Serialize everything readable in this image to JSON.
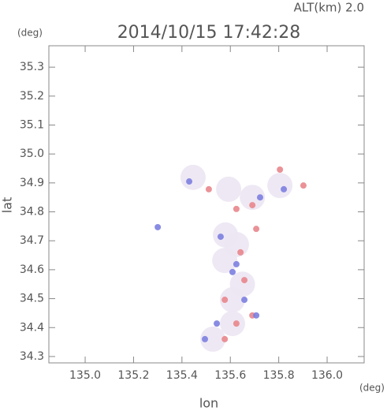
{
  "chart_data": {
    "type": "scatter",
    "title": "2014/10/15 17:42:28",
    "subtitle": "ALT(km) 2.0",
    "x_label": "lon",
    "y_label": "lat",
    "x_unit": "(deg)",
    "y_unit": "(deg)",
    "xlim": [
      134.85,
      136.153
    ],
    "ylim": [
      34.278,
      35.374
    ],
    "xticks": [
      {
        "value": 135.0,
        "label": "135.0"
      },
      135.2,
      135.4,
      135.6,
      135.8,
      {
        "value": 136.0,
        "label": "136.0"
      }
    ],
    "yticks": [
      34.3,
      34.4,
      34.5,
      34.6,
      34.7,
      34.8,
      34.9,
      {
        "value": 35.0,
        "label": "35.0"
      },
      35.1,
      35.2,
      35.3
    ],
    "series": [
      {
        "color": "#ece6f3",
        "x": [
          135.446,
          135.593,
          135.625,
          135.577,
          135.609,
          135.609,
          135.528,
          135.691,
          135.805,
          135.58,
          135.65
        ],
        "y": [
          34.919,
          34.878,
          34.687,
          34.632,
          34.496,
          34.414,
          34.36,
          34.85,
          34.891,
          34.72,
          34.55
        ]
      },
      {
        "color": "#e8868c",
        "x": [
          135.805,
          135.691,
          135.707,
          135.642,
          135.658,
          135.577,
          135.625,
          135.577,
          135.691,
          135.902,
          135.625,
          135.511
        ],
        "y": [
          34.946,
          34.823,
          34.741,
          34.66,
          34.564,
          34.496,
          34.414,
          34.36,
          34.442,
          34.891,
          34.81,
          34.878
        ]
      },
      {
        "color": "#7c7fe0",
        "x": [
          135.3,
          135.56,
          135.625,
          135.495,
          135.658,
          135.609,
          135.821,
          135.707,
          135.544,
          135.723,
          135.43
        ],
        "y": [
          34.747,
          34.714,
          34.619,
          34.36,
          34.496,
          34.592,
          34.878,
          34.442,
          34.414,
          34.85,
          34.905
        ]
      }
    ]
  }
}
